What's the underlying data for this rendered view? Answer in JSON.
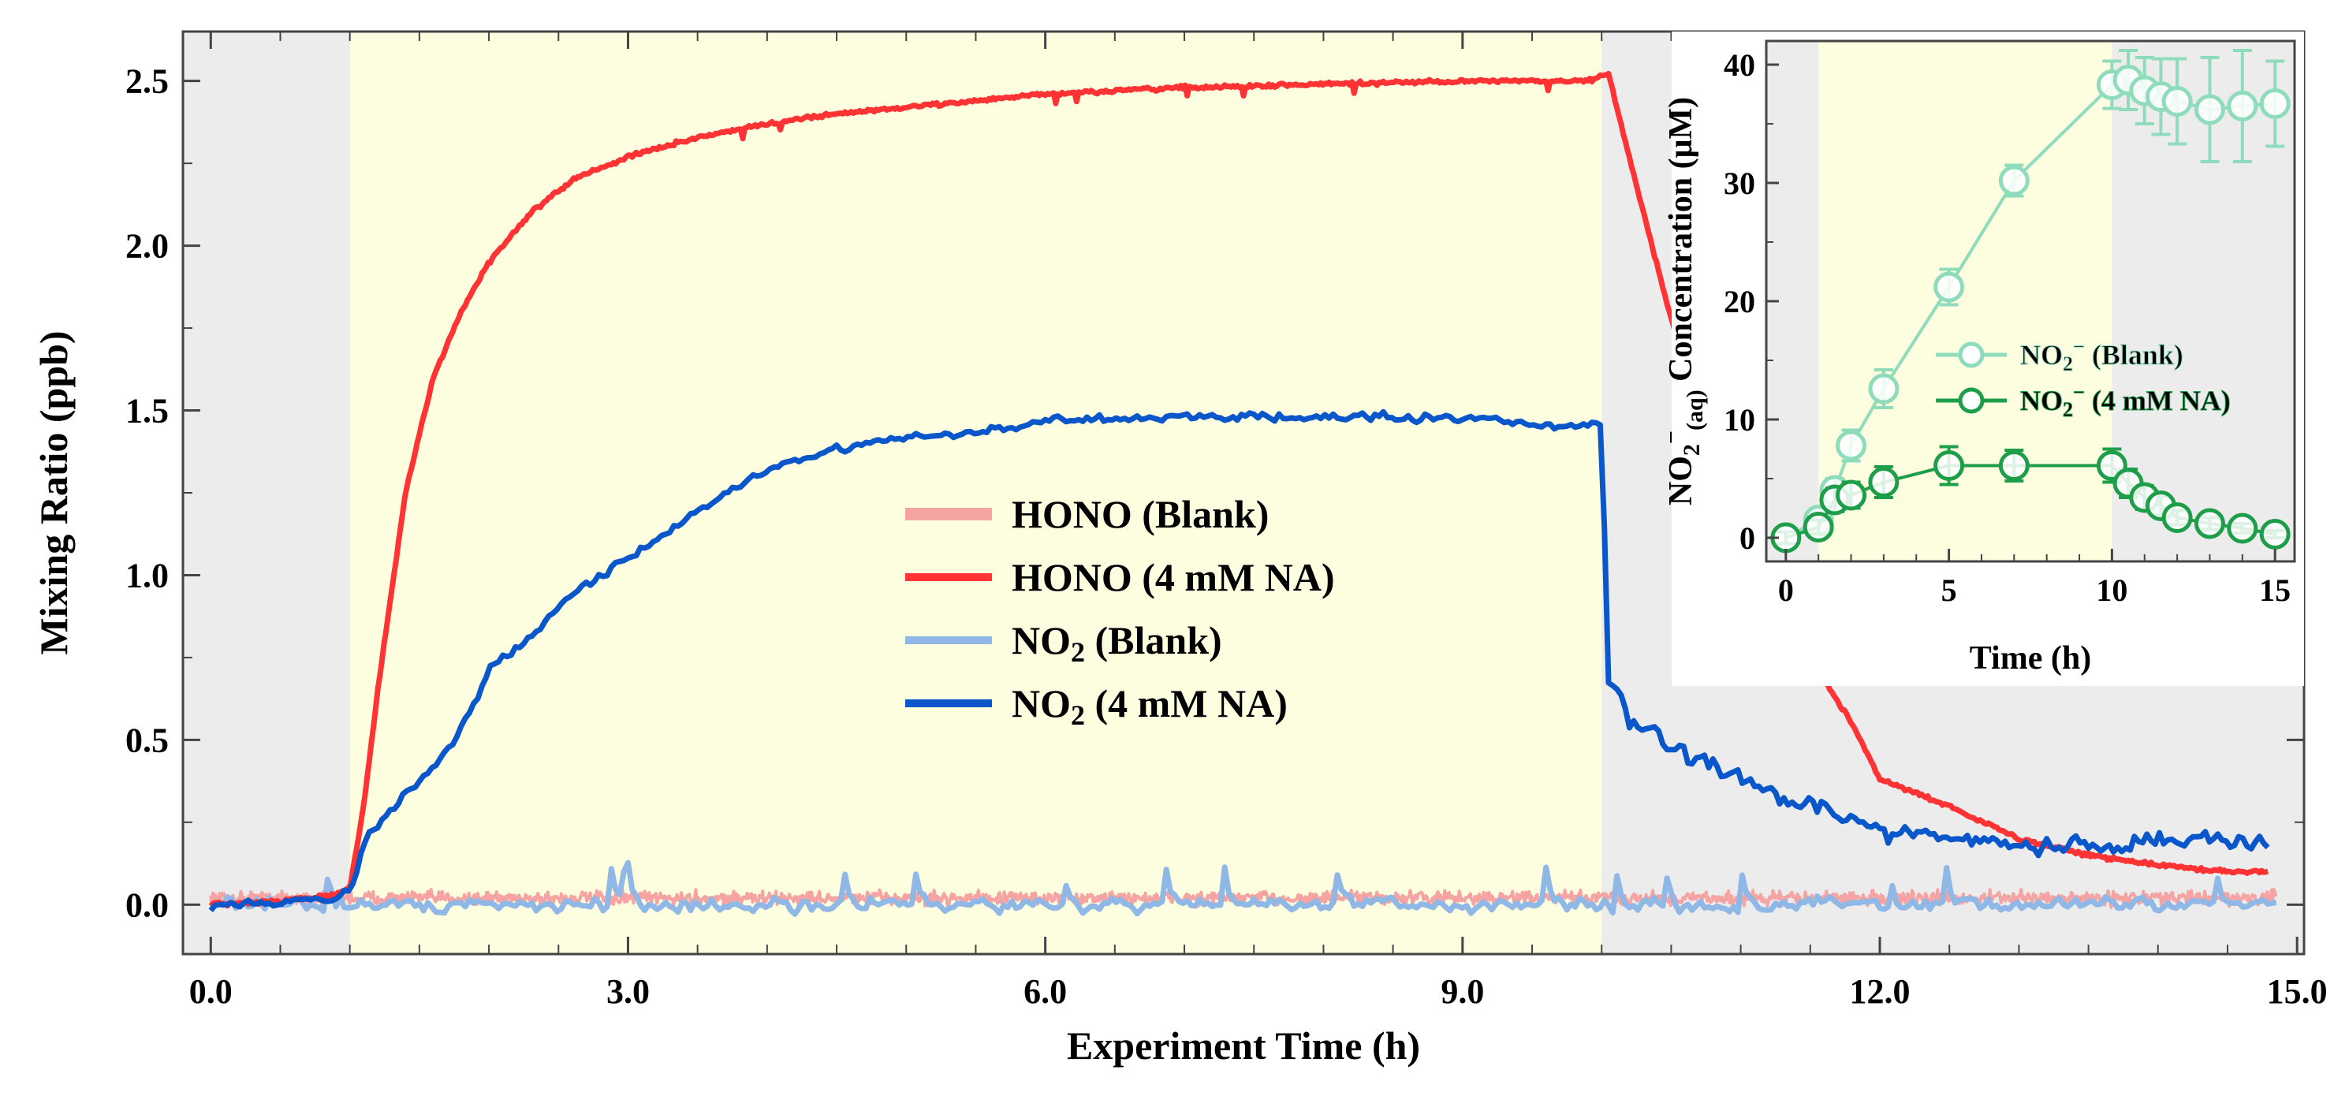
{
  "colors": {
    "hono_blank": "#f5a3a3",
    "hono_na": "#ff3333",
    "no2_blank": "#8fb8e6",
    "no2_na": "#0a57cc",
    "inset_blank": "#8fdcbc",
    "inset_na": "#1f9e4a",
    "dark_band": "#ececec",
    "light_band": "#fdfde0"
  },
  "chart_data": [
    {
      "type": "line",
      "xlabel": "Experiment Time (h)",
      "ylabel": "Mixing Ratio (ppb)",
      "xlim": [
        -0.2,
        15.05
      ],
      "ylim": [
        -0.15,
        2.65
      ],
      "xticks": [
        "0.0",
        "3.0",
        "6.0",
        "9.0",
        "12.0",
        "15.0"
      ],
      "yticks": [
        "0.0",
        "0.5",
        "1.0",
        "1.5",
        "2.0",
        "2.5"
      ],
      "light_period": [
        1.0,
        10.0
      ],
      "grid": false,
      "legend_position": "center",
      "series": [
        {
          "name": "HONO (Blank)",
          "style": "noisy-band",
          "x": [
            0.0,
            14.85
          ],
          "y": [
            0.02,
            0.02
          ],
          "noise": 0.03
        },
        {
          "name": "HONO (4 mM NA)",
          "x": [
            0.0,
            0.5,
            0.9,
            1.0,
            1.1,
            1.2,
            1.4,
            1.6,
            1.8,
            2.0,
            2.3,
            2.6,
            3.0,
            3.5,
            4.0,
            4.5,
            5.0,
            6.0,
            7.0,
            8.0,
            9.0,
            9.9,
            10.05,
            10.3,
            10.6,
            10.9,
            11.2,
            11.5,
            11.8,
            12.0,
            12.5,
            13.0,
            13.5,
            14.0,
            14.5,
            14.8
          ],
          "y": [
            0.0,
            0.01,
            0.03,
            0.05,
            0.3,
            0.65,
            1.25,
            1.6,
            1.8,
            1.95,
            2.1,
            2.2,
            2.27,
            2.33,
            2.37,
            2.4,
            2.42,
            2.46,
            2.48,
            2.49,
            2.5,
            2.5,
            2.52,
            2.1,
            1.62,
            1.3,
            1.0,
            0.75,
            0.55,
            0.38,
            0.3,
            0.2,
            0.15,
            0.12,
            0.1,
            0.1
          ],
          "noise": 0.008
        },
        {
          "name": "NO2 (Blank)",
          "x": [
            0.0,
            14.85
          ],
          "y": [
            0.0,
            0.0
          ],
          "noise": 0.045
        },
        {
          "name": "NO2 (4 mM NA)",
          "x": [
            0.0,
            0.5,
            0.9,
            1.0,
            1.1,
            1.3,
            1.6,
            1.8,
            2.0,
            2.3,
            2.6,
            3.0,
            3.5,
            4.0,
            4.5,
            5.0,
            5.5,
            6.0,
            7.0,
            8.0,
            9.0,
            9.8,
            9.9,
            10.0,
            10.05,
            10.2,
            10.5,
            11.0,
            11.5,
            12.0,
            12.5,
            13.0,
            13.5,
            14.0,
            14.5,
            14.8
          ],
          "y": [
            0.0,
            0.01,
            0.02,
            0.05,
            0.2,
            0.3,
            0.42,
            0.55,
            0.72,
            0.82,
            0.95,
            1.05,
            1.2,
            1.32,
            1.38,
            1.42,
            1.43,
            1.47,
            1.48,
            1.48,
            1.48,
            1.45,
            1.45,
            1.45,
            0.68,
            0.55,
            0.47,
            0.38,
            0.3,
            0.22,
            0.2,
            0.18,
            0.18,
            0.19,
            0.2,
            0.2
          ],
          "noise": 0.025
        }
      ]
    },
    {
      "type": "scatter",
      "xlabel": "Time (h)",
      "ylabel": "NO₂⁻(aq) Concentration (μM)",
      "ylabel_parts": {
        "main": "NO",
        "sub1": "2",
        "sup": "−",
        "sub2": "(aq)",
        "rest": " Concentration (μM)"
      },
      "xlim": [
        -0.6,
        15.6
      ],
      "ylim": [
        -2,
        42
      ],
      "xticks": [
        "0",
        "5",
        "10",
        "15"
      ],
      "yticks": [
        "0",
        "10",
        "20",
        "30",
        "40"
      ],
      "light_period": [
        1.0,
        10.0
      ],
      "grid": false,
      "legend_position": "center-right",
      "series": [
        {
          "name": "NO₂⁻ (Blank)",
          "x": [
            0,
            1,
            1.5,
            2,
            3,
            5,
            7,
            10,
            10.5,
            11,
            11.5,
            12,
            13,
            14,
            15
          ],
          "y": [
            0,
            1.5,
            4,
            7.8,
            12.6,
            21.2,
            30.2,
            38.3,
            38.7,
            37.8,
            37.3,
            36.9,
            36.2,
            36.5,
            36.7
          ],
          "err": [
            0.6,
            0.8,
            1.0,
            1.3,
            1.6,
            1.5,
            1.3,
            2.0,
            2.5,
            2.8,
            3.2,
            3.6,
            4.4,
            4.7,
            3.6
          ]
        },
        {
          "name": "NO₂⁻ (4 mM NA)",
          "x": [
            0,
            1,
            1.5,
            2,
            3,
            5,
            7,
            10,
            10.5,
            11,
            11.5,
            12,
            13,
            14,
            15
          ],
          "y": [
            0,
            0.9,
            3.2,
            3.6,
            4.7,
            6.1,
            6.1,
            6.1,
            4.6,
            3.4,
            2.7,
            1.7,
            1.2,
            0.8,
            0.3
          ],
          "err": [
            0.5,
            0.6,
            1.0,
            1.1,
            1.3,
            1.6,
            1.3,
            1.4,
            1.2,
            1.0,
            0.8,
            0.6,
            0.5,
            0.4,
            0.3
          ]
        }
      ]
    }
  ]
}
